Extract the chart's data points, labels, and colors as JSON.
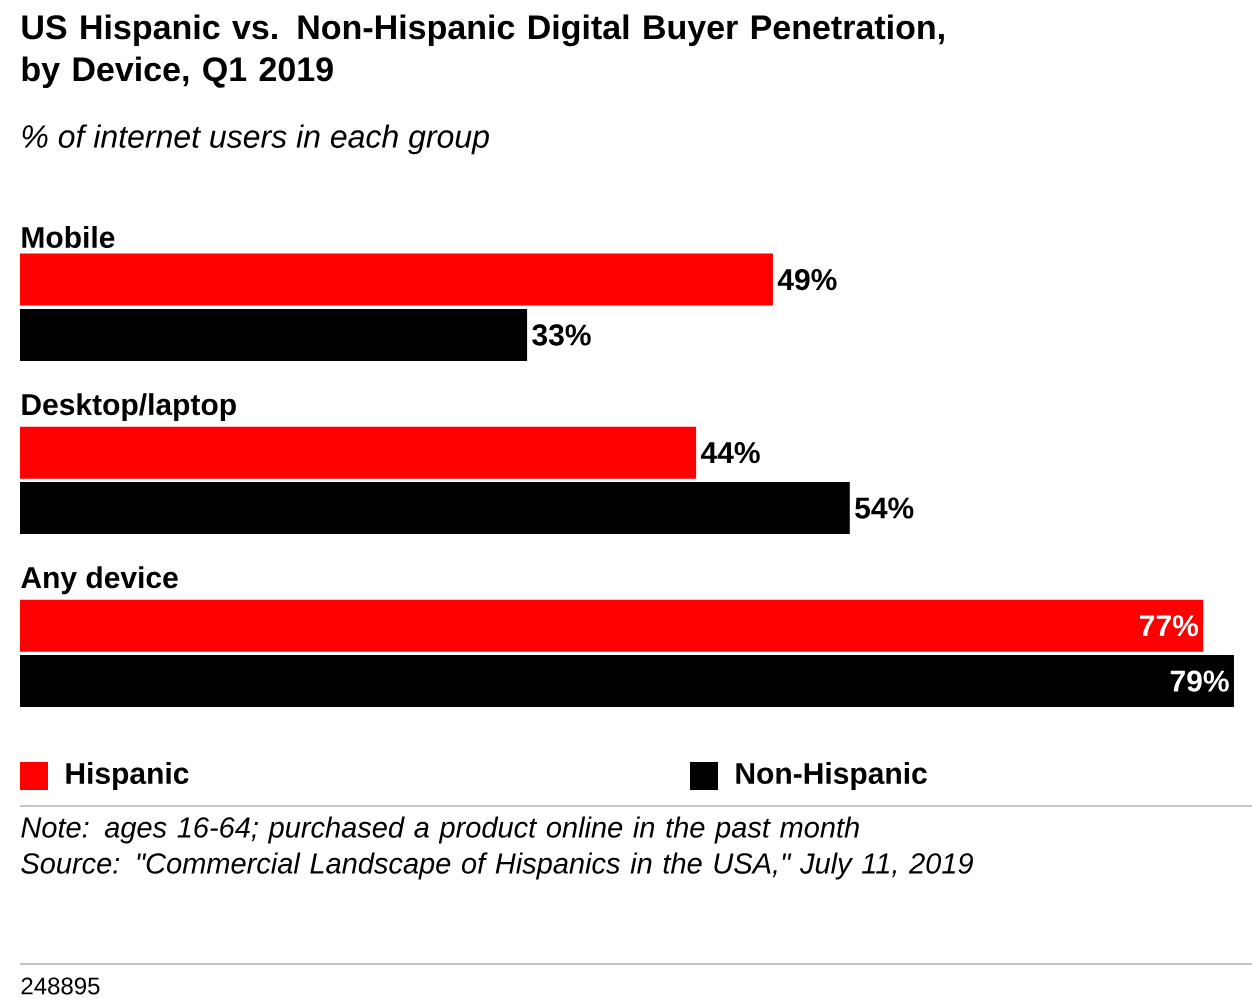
{
  "chart_data": {
    "type": "bar",
    "orientation": "horizontal",
    "title": "US Hispanic vs. Non-Hispanic Digital Buyer Penetration, by Device, Q1 2019",
    "subtitle": "% of internet users in each group",
    "categories": [
      "Mobile",
      "Desktop/laptop",
      "Any device"
    ],
    "series": [
      {
        "name": "Hispanic",
        "color": "#ff0000",
        "values": [
          49,
          44,
          77
        ],
        "value_labels": [
          "49%",
          "44%",
          "77%"
        ]
      },
      {
        "name": "Non-Hispanic",
        "color": "#000000",
        "values": [
          33,
          54,
          79
        ],
        "value_labels": [
          "33%",
          "54%",
          "79%"
        ]
      }
    ],
    "legend": "bottom",
    "annotations": [
      "Note: ages 16-64; purchased a product online in the past month",
      "Source: \"Commercial Landscape of Hispanics in the USA,\" July 11, 2019",
      "248895"
    ]
  }
}
